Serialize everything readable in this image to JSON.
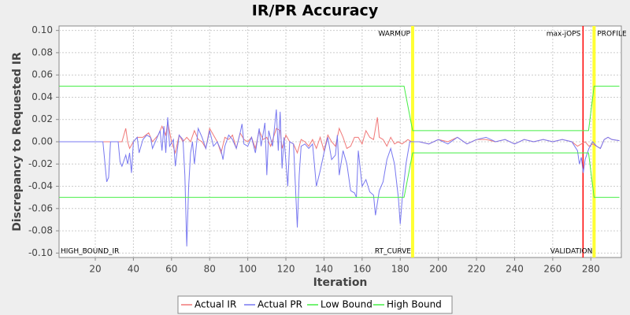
{
  "chart_data": {
    "type": "line",
    "title": "IR/PR Accuracy",
    "x_label": "Iteration",
    "y_label": "Discrepancy to Requested IR",
    "xlim": [
      1,
      296
    ],
    "ylim": [
      -0.104,
      0.104
    ],
    "xticks": [
      20,
      40,
      60,
      80,
      100,
      120,
      140,
      160,
      180,
      200,
      220,
      240,
      260,
      280
    ],
    "yticks": [
      {
        "value": 0.1,
        "label": "0.10"
      },
      {
        "value": 0.08,
        "label": "0.08"
      },
      {
        "value": 0.06,
        "label": "0.06"
      },
      {
        "value": 0.04,
        "label": "0.04"
      },
      {
        "value": 0.02,
        "label": "0.02"
      },
      {
        "value": 0,
        "label": "0.00"
      },
      {
        "value": -0.02,
        "label": "-0.02"
      },
      {
        "value": -0.04,
        "label": "-0.04"
      },
      {
        "value": -0.06,
        "label": "-0.06"
      },
      {
        "value": -0.08,
        "label": "-0.08"
      },
      {
        "value": -0.1,
        "label": "-0.10"
      }
    ],
    "grid": true,
    "legend": "bottom",
    "markers": [
      {
        "label": "WARMUP",
        "x": 186.5,
        "color": "#ffff33"
      },
      {
        "label": "max-jOPS",
        "x": 275.9,
        "color": "#ff0000"
      },
      {
        "label": "PROFILE",
        "x": 281.7,
        "color": "#ffff33"
      }
    ],
    "phases": [
      {
        "label": "HIGH_BOUND_IR",
        "x": 1
      },
      {
        "label": "RT_CURVE",
        "x": 186.5
      },
      {
        "label": "VALIDATION",
        "x": 281.7
      }
    ],
    "series": [
      {
        "name": "Actual IR",
        "color": "#f07878",
        "x": [
          1,
          34,
          36,
          37,
          38,
          40,
          42,
          45,
          48,
          50,
          53,
          55,
          57,
          58,
          60,
          62,
          64,
          66,
          68,
          70,
          72,
          74,
          76,
          78,
          80,
          82,
          84,
          86,
          88,
          90,
          92,
          94,
          96,
          98,
          100,
          102,
          104,
          106,
          108,
          110,
          112,
          115,
          117,
          118,
          120,
          122,
          124,
          126,
          128,
          130,
          132,
          134,
          136,
          138,
          140,
          142,
          144,
          146,
          148,
          150,
          152,
          154,
          156,
          158,
          160,
          162,
          164,
          166,
          168,
          169,
          171,
          173,
          175,
          177,
          179,
          181,
          184,
          186,
          190,
          195,
          200,
          205,
          210,
          215,
          220,
          225,
          230,
          235,
          240,
          245,
          250,
          255,
          260,
          265,
          270,
          273,
          275,
          277,
          279,
          281,
          283,
          285,
          287,
          289,
          291,
          295
        ],
        "values": [
          0,
          0,
          0.012,
          0,
          -0.006,
          0,
          0.004,
          0.004,
          0.008,
          0,
          0.006,
          0.014,
          0.006,
          0.018,
          0,
          -0.01,
          0.006,
          0,
          0.004,
          0,
          0.01,
          0.002,
          0,
          -0.006,
          0.012,
          0.006,
          0,
          -0.01,
          0.004,
          0.002,
          0.006,
          -0.006,
          0.008,
          0.002,
          0,
          0.004,
          -0.006,
          0.01,
          0.002,
          0.004,
          -0.004,
          0.012,
          0.01,
          -0.006,
          0.006,
          0,
          -0.002,
          -0.01,
          0.002,
          0,
          -0.004,
          0.002,
          -0.006,
          0.004,
          -0.008,
          0.006,
          0,
          -0.004,
          0.012,
          0.004,
          -0.006,
          -0.004,
          0.004,
          0.004,
          -0.002,
          0.01,
          0.004,
          0.002,
          0.022,
          0.004,
          0.002,
          -0.004,
          0.004,
          -0.002,
          0,
          -0.002,
          0.002,
          0,
          0,
          -0.002,
          0.002,
          0,
          0.004,
          -0.002,
          0.002,
          0.002,
          0,
          0.002,
          -0.002,
          0.002,
          0,
          0.002,
          0,
          0.002,
          0,
          -0.004,
          -0.002,
          0,
          -0.004,
          -0.002,
          -0.004,
          -0.006,
          0.002,
          0.004,
          0.002,
          0.001
        ]
      },
      {
        "name": "Actual PR",
        "color": "#7878f0",
        "x": [
          1,
          24,
          26,
          27,
          28,
          32,
          33,
          34,
          36,
          37,
          38,
          39,
          40,
          42,
          43,
          45,
          47,
          49,
          50,
          52,
          54,
          55,
          56,
          57,
          58,
          59,
          61,
          62,
          64,
          66,
          67,
          68,
          69,
          70,
          71,
          72,
          74,
          76,
          78,
          80,
          82,
          84,
          86,
          87,
          88,
          90,
          92,
          94,
          96,
          97,
          98,
          100,
          102,
          104,
          106,
          107,
          109,
          110,
          111,
          113,
          115,
          116,
          117,
          118,
          119,
          121,
          122,
          124,
          126,
          127,
          128,
          130,
          132,
          134,
          136,
          138,
          140,
          142,
          144,
          146,
          147,
          148,
          150,
          152,
          154,
          156,
          157,
          158,
          160,
          162,
          164,
          166,
          167,
          169,
          171,
          173,
          175,
          177,
          179,
          180,
          181,
          183,
          185,
          190,
          195,
          200,
          205,
          210,
          215,
          220,
          225,
          230,
          235,
          240,
          245,
          250,
          255,
          260,
          265,
          270,
          273,
          274,
          275,
          276,
          277,
          279,
          281,
          283,
          285,
          287,
          289,
          291,
          295
        ],
        "values": [
          0,
          0,
          -0.036,
          -0.032,
          0,
          0,
          -0.018,
          -0.022,
          -0.012,
          -0.02,
          -0.01,
          -0.028,
          0,
          0.004,
          -0.01,
          0.002,
          0.006,
          0.004,
          -0.006,
          0.002,
          0.01,
          -0.008,
          0.014,
          -0.01,
          0.022,
          -0.004,
          0.002,
          -0.022,
          0.006,
          0.002,
          -0.03,
          -0.094,
          -0.04,
          -0.01,
          0,
          -0.02,
          0.012,
          0.004,
          -0.006,
          0.01,
          -0.004,
          0,
          -0.008,
          -0.016,
          -0.004,
          0.006,
          0.002,
          -0.006,
          0.008,
          0.016,
          -0.002,
          -0.004,
          0.004,
          -0.01,
          0.012,
          -0.004,
          0.017,
          -0.03,
          0.01,
          -0.004,
          0.029,
          -0.008,
          0.027,
          -0.024,
          0.004,
          -0.04,
          0,
          -0.002,
          -0.077,
          -0.03,
          -0.004,
          -0.002,
          -0.006,
          -0.002,
          -0.04,
          -0.026,
          -0.01,
          0.004,
          -0.016,
          -0.012,
          0.006,
          -0.03,
          -0.008,
          -0.02,
          -0.044,
          -0.046,
          -0.05,
          -0.008,
          -0.04,
          -0.034,
          -0.045,
          -0.048,
          -0.066,
          -0.044,
          -0.036,
          -0.016,
          -0.006,
          -0.02,
          -0.05,
          -0.074,
          -0.052,
          -0.02,
          0,
          0,
          -0.002,
          0.002,
          -0.002,
          0.004,
          -0.002,
          0.002,
          0.004,
          0,
          0.002,
          -0.002,
          0.002,
          0,
          0.002,
          0,
          0.002,
          0,
          -0.008,
          -0.02,
          -0.014,
          -0.028,
          -0.016,
          -0.006,
          0,
          -0.004,
          -0.006,
          0.002,
          0.004,
          0.002,
          0.001
        ]
      },
      {
        "name": "Low Bound",
        "color": "#44ee44",
        "x": [
          1,
          182,
          186.5,
          278.8,
          281.7,
          295
        ],
        "values": [
          -0.05,
          -0.05,
          -0.01,
          -0.01,
          -0.05,
          -0.05
        ]
      },
      {
        "name": "High Bound",
        "color": "#44ee44",
        "x": [
          1,
          182,
          186.5,
          278.8,
          281.7,
          295
        ],
        "values": [
          0.05,
          0.05,
          0.01,
          0.01,
          0.05,
          0.05
        ]
      }
    ]
  }
}
